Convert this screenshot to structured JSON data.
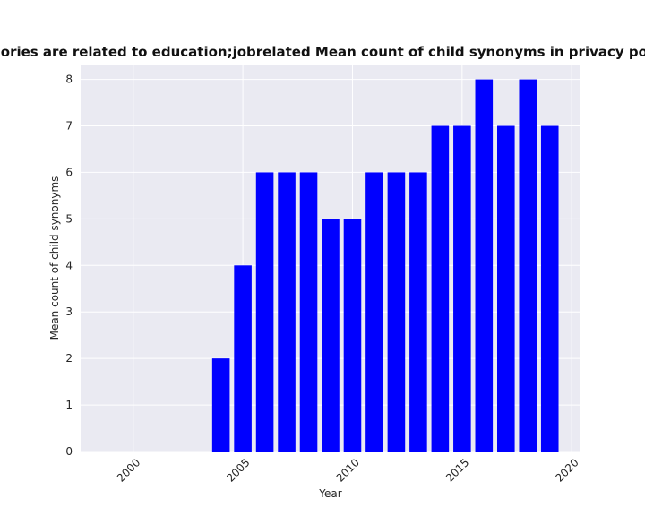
{
  "chart_data": {
    "type": "bar",
    "title": "categories are related to education;jobrelated Mean count of child synonyms in privacy policies",
    "xlabel": "Year",
    "ylabel": "Mean count of child synonyms",
    "x": [
      2004,
      2005,
      2006,
      2007,
      2008,
      2009,
      2010,
      2011,
      2012,
      2013,
      2014,
      2015,
      2016,
      2017,
      2018,
      2019
    ],
    "values": [
      2,
      4,
      6,
      6,
      6,
      5,
      5,
      6,
      6,
      6,
      7,
      7,
      8,
      7,
      8,
      7
    ],
    "xlim": [
      1997.6,
      2020.4
    ],
    "ylim": [
      0,
      8.3
    ],
    "xticks": [
      2000,
      2005,
      2010,
      2015,
      2020
    ],
    "yticks": [
      0,
      1,
      2,
      3,
      4,
      5,
      6,
      7,
      8
    ],
    "xtick_rotation_deg": 45,
    "grid": true,
    "bar_color": "#0000ff",
    "background_color": "#eaeaf2",
    "grid_color": "#ffffff"
  }
}
